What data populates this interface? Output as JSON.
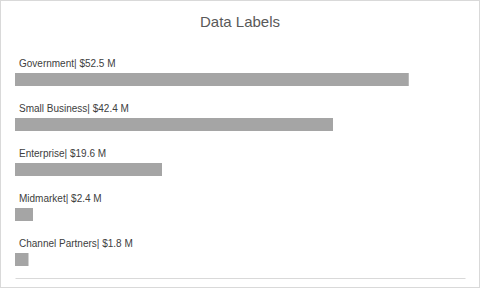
{
  "chart_data": {
    "type": "bar",
    "title": "Data Labels",
    "orientation": "horizontal",
    "categories": [
      "Government",
      "Small Business",
      "Enterprise",
      "Midmarket",
      "Channel Partners"
    ],
    "values": [
      52.5,
      42.4,
      19.6,
      2.4,
      1.8
    ],
    "value_labels": [
      "| $52.5 M",
      "| $42.4 M",
      "| $19.6 M",
      "| $2.4 M",
      "| $1.8 M"
    ],
    "color": "#a5a5a5",
    "xlim": [
      0,
      60
    ],
    "data_labels": true,
    "tick_labels": false
  }
}
